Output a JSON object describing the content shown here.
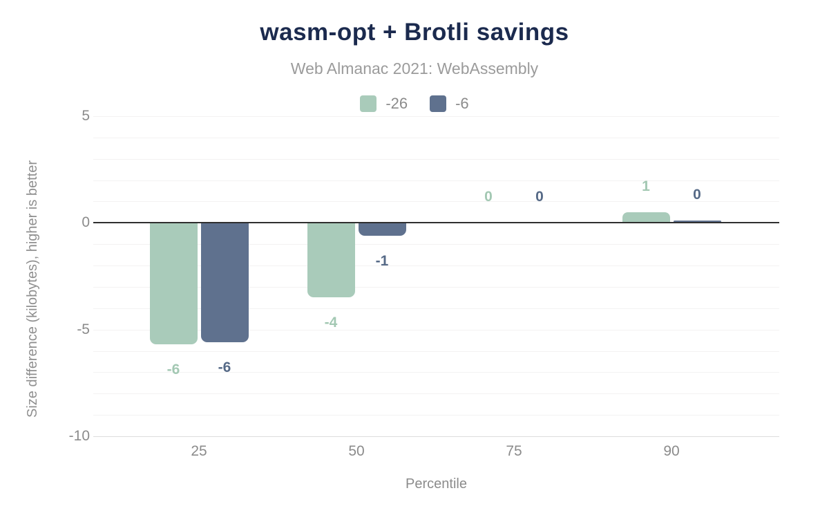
{
  "chart_data": {
    "type": "bar",
    "title": "wasm-opt + Brotli savings",
    "subtitle": "Web Almanac 2021: WebAssembly",
    "xlabel": "Percentile",
    "ylabel": "Size difference (kilobytes), higher is better",
    "categories": [
      "25",
      "50",
      "75",
      "90"
    ],
    "series": [
      {
        "name": "-26",
        "color": "#a9cbba",
        "label_color": "#a3c8b3",
        "values": [
          -5.7,
          -3.5,
          0,
          0.5
        ],
        "value_labels": [
          "-6",
          "-4",
          "0",
          "1"
        ]
      },
      {
        "name": "-6",
        "color": "#5f718e",
        "label_color": "#566a87",
        "values": [
          -5.6,
          -0.6,
          0,
          0.1
        ],
        "value_labels": [
          "-6",
          "-1",
          "0",
          "0"
        ]
      }
    ],
    "yticks": [
      "5",
      "0",
      "-5",
      "-10"
    ],
    "ylim": [
      -10,
      5
    ],
    "grid": "horizontal gridlines every 1 unit, faint; solid dark zero line",
    "legend_position": "top",
    "colors": {
      "title": "#1b2a4e",
      "subtitle": "#9b9b9b",
      "axis_text": "#8b8b8b",
      "gridline_minor": "#f3f2f2",
      "gridline_bottom": "#dcdcdc",
      "zero_line": "#2f2f2f",
      "background": "#ffffff"
    }
  }
}
